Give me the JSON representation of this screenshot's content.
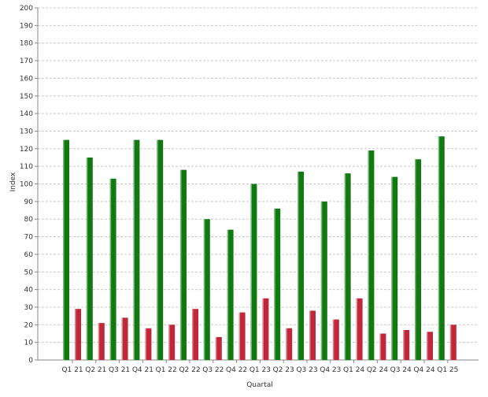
{
  "chart_data": {
    "type": "bar",
    "title": "",
    "xlabel": "Quartal",
    "ylabel": "Index",
    "ylim": [
      0,
      200
    ],
    "ytick_step": 10,
    "grid": true,
    "legend": "none",
    "categories": [
      "Q1 21",
      "Q2 21",
      "Q3 21",
      "Q4 21",
      "Q1 22",
      "Q2 22",
      "Q3 22",
      "Q4 22",
      "Q1 23",
      "Q2 23",
      "Q3 23",
      "Q4 23",
      "Q1 24",
      "Q2 24",
      "Q3 24",
      "Q4 24",
      "Q1 25"
    ],
    "series": [
      {
        "color": "#107a10",
        "values": [
          125,
          115,
          103,
          125,
          125,
          108,
          80,
          74,
          100,
          86,
          107,
          90,
          106,
          119,
          104,
          114,
          127
        ]
      },
      {
        "color": "#c0273a",
        "values": [
          29,
          21,
          24,
          18,
          20,
          29,
          13,
          27,
          35,
          18,
          28,
          23,
          35,
          15,
          17,
          16,
          20
        ]
      }
    ]
  }
}
